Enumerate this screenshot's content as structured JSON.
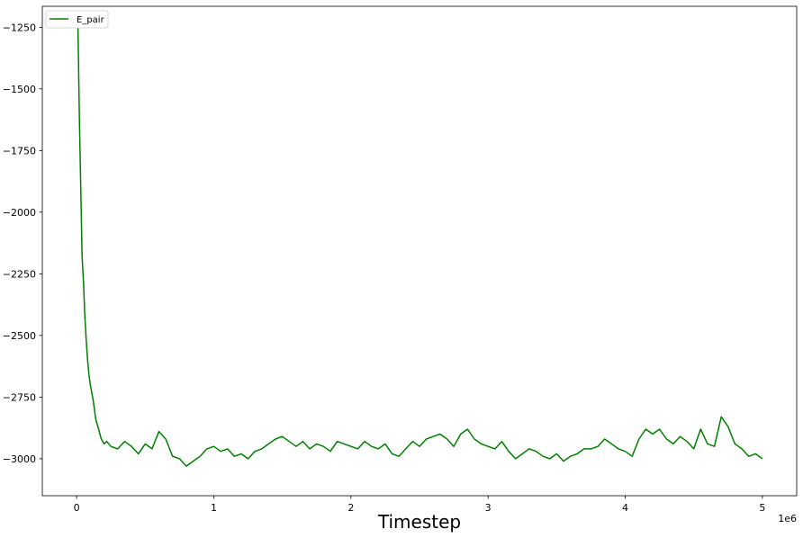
{
  "chart_data": {
    "type": "line",
    "xlabel": "Timestep",
    "ylabel": "",
    "x_offset_label": "1e6",
    "xlim": [
      -0.25,
      5.25
    ],
    "ylim": [
      -3150,
      -1165
    ],
    "x_ticks": [
      0,
      1,
      2,
      3,
      4,
      5
    ],
    "x_tick_labels": [
      "0",
      "1",
      "2",
      "3",
      "4",
      "5"
    ],
    "y_ticks": [
      -1250,
      -1500,
      -1750,
      -2000,
      -2250,
      -2500,
      -2750,
      -3000
    ],
    "y_tick_labels": [
      "−1250",
      "−1500",
      "−1750",
      "−2000",
      "−2250",
      "−2500",
      "−2750",
      "−3000"
    ],
    "legend": {
      "placement": "top-left",
      "entries": [
        "E_pair"
      ]
    },
    "grid": false,
    "series": [
      {
        "name": "E_pair",
        "color": "#008000",
        "x": [
          0.01,
          0.02,
          0.03,
          0.04,
          0.05,
          0.06,
          0.07,
          0.08,
          0.09,
          0.1,
          0.12,
          0.14,
          0.16,
          0.18,
          0.2,
          0.22,
          0.25,
          0.3,
          0.35,
          0.4,
          0.45,
          0.5,
          0.55,
          0.6,
          0.65,
          0.7,
          0.75,
          0.8,
          0.85,
          0.9,
          0.95,
          1.0,
          1.05,
          1.1,
          1.15,
          1.2,
          1.25,
          1.3,
          1.35,
          1.4,
          1.45,
          1.5,
          1.55,
          1.6,
          1.65,
          1.7,
          1.75,
          1.8,
          1.85,
          1.9,
          1.95,
          2.0,
          2.05,
          2.1,
          2.15,
          2.2,
          2.25,
          2.3,
          2.35,
          2.4,
          2.45,
          2.5,
          2.55,
          2.6,
          2.65,
          2.7,
          2.75,
          2.8,
          2.85,
          2.9,
          2.95,
          3.0,
          3.05,
          3.1,
          3.15,
          3.2,
          3.25,
          3.3,
          3.35,
          3.4,
          3.45,
          3.5,
          3.55,
          3.6,
          3.65,
          3.7,
          3.75,
          3.8,
          3.85,
          3.9,
          3.95,
          4.0,
          4.05,
          4.1,
          4.15,
          4.2,
          4.25,
          4.3,
          4.35,
          4.4,
          4.45,
          4.5,
          4.55,
          4.6,
          4.65,
          4.7,
          4.75,
          4.8,
          4.85,
          4.9,
          4.95,
          5.0
        ],
        "values": [
          -1250,
          -1600,
          -1900,
          -2180,
          -2280,
          -2420,
          -2520,
          -2600,
          -2660,
          -2700,
          -2760,
          -2840,
          -2880,
          -2920,
          -2940,
          -2930,
          -2950,
          -2960,
          -2930,
          -2950,
          -2980,
          -2940,
          -2960,
          -2890,
          -2920,
          -2990,
          -3000,
          -3030,
          -3010,
          -2990,
          -2960,
          -2950,
          -2970,
          -2960,
          -2990,
          -2980,
          -3000,
          -2970,
          -2960,
          -2940,
          -2920,
          -2910,
          -2930,
          -2950,
          -2930,
          -2960,
          -2940,
          -2950,
          -2970,
          -2930,
          -2940,
          -2950,
          -2960,
          -2930,
          -2950,
          -2960,
          -2940,
          -2980,
          -2990,
          -2960,
          -2930,
          -2950,
          -2920,
          -2910,
          -2900,
          -2920,
          -2950,
          -2900,
          -2880,
          -2920,
          -2940,
          -2950,
          -2960,
          -2930,
          -2970,
          -3000,
          -2980,
          -2960,
          -2970,
          -2990,
          -3000,
          -2980,
          -3010,
          -2990,
          -2980,
          -2960,
          -2960,
          -2950,
          -2920,
          -2940,
          -2960,
          -2970,
          -2990,
          -2920,
          -2880,
          -2900,
          -2880,
          -2920,
          -2940,
          -2910,
          -2930,
          -2960,
          -2880,
          -2940,
          -2950,
          -2830,
          -2870,
          -2940,
          -2960,
          -2990,
          -2980,
          -3000
        ]
      }
    ]
  }
}
